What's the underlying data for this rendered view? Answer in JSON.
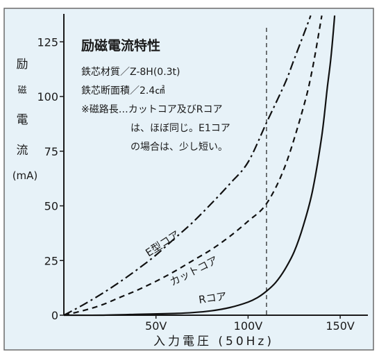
{
  "chart_data": {
    "type": "line",
    "title": "励磁電流特性",
    "notes": [
      "鉄芯材質／Z-8H(0.3t)",
      "鉄芯断面積／2.4㎠",
      "※磁路長…カットコア及びRコア",
      "は、ほぼ同じ。E1コア",
      "の場合は、少し短い。"
    ],
    "ylabel_chars": [
      "励",
      "磁",
      "電",
      "流"
    ],
    "yunit": "(mA)",
    "xlabel": "入力電圧 (50Hz)",
    "xlim": [
      0,
      150
    ],
    "ylim": [
      0,
      137
    ],
    "xticks": [
      {
        "v": 50,
        "label": "50V"
      },
      {
        "v": 100,
        "label": "100V"
      },
      {
        "v": 150,
        "label": "150V"
      }
    ],
    "yticks": [
      {
        "v": 0,
        "label": "0"
      },
      {
        "v": 25,
        "label": "25"
      },
      {
        "v": 50,
        "label": "50"
      },
      {
        "v": 75,
        "label": "75"
      },
      {
        "v": 100,
        "label": "100"
      },
      {
        "v": 125,
        "label": "125"
      }
    ],
    "reference_line_x": 110,
    "series": [
      {
        "name": "E型コア",
        "style": "dashdot",
        "x": [
          0,
          10,
          20,
          30,
          40,
          50,
          60,
          70,
          80,
          90,
          100,
          110,
          120,
          125,
          130,
          134
        ],
        "y": [
          0,
          4.5,
          9.5,
          15,
          21,
          27.5,
          35,
          42.5,
          51,
          60,
          70,
          88,
          106,
          117,
          128,
          137
        ]
      },
      {
        "name": "カットコア",
        "style": "dashed",
        "x": [
          0,
          10,
          20,
          30,
          40,
          50,
          60,
          70,
          80,
          90,
          100,
          110,
          120,
          130,
          135,
          140
        ],
        "y": [
          0,
          2,
          4.5,
          8,
          11.5,
          15.5,
          20,
          25,
          30,
          36,
          43,
          51,
          68,
          95,
          113,
          137
        ]
      },
      {
        "name": "Rコア",
        "style": "solid",
        "x": [
          0,
          20,
          40,
          60,
          70,
          80,
          90,
          100,
          105,
          110,
          115,
          120,
          125,
          130,
          135,
          140,
          143,
          145,
          147
        ],
        "y": [
          0,
          0,
          0.4,
          0.8,
          1.2,
          2,
          3.5,
          6,
          8,
          11,
          15,
          21,
          29,
          41,
          57,
          82,
          104,
          118,
          137
        ]
      }
    ]
  }
}
